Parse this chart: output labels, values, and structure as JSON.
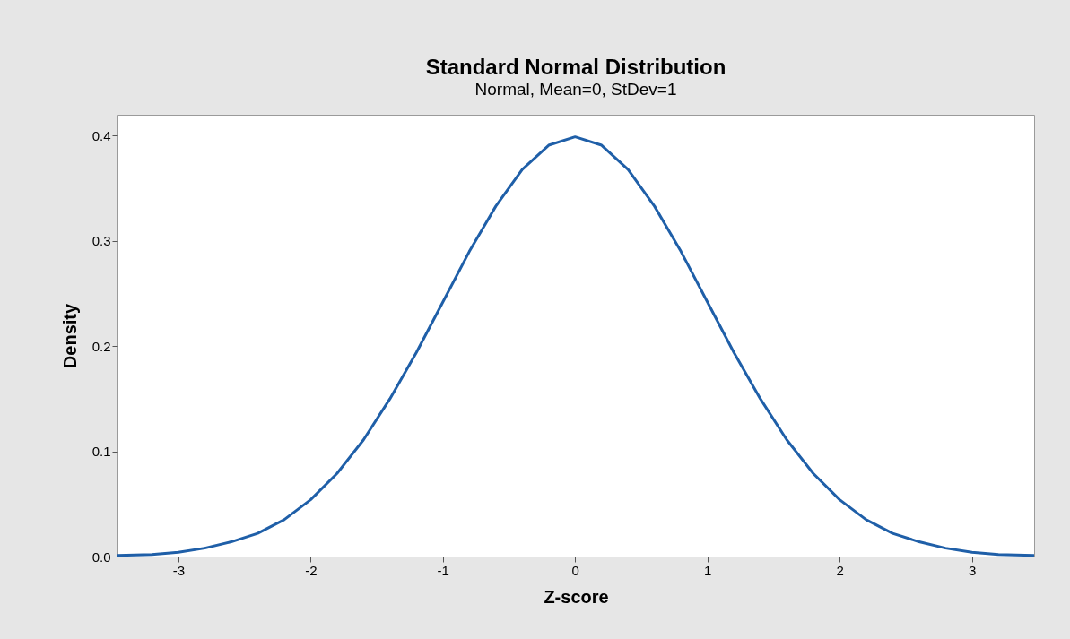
{
  "chart_data": {
    "type": "line",
    "title": "Standard Normal Distribution",
    "subtitle": "Normal, Mean=0, StDev=1",
    "xlabel": "Z-score",
    "ylabel": "Density",
    "x": [
      -3.46,
      -3.2,
      -3.0,
      -2.8,
      -2.6,
      -2.4,
      -2.2,
      -2.0,
      -1.8,
      -1.6,
      -1.4,
      -1.2,
      -1.0,
      -0.8,
      -0.6,
      -0.4,
      -0.2,
      0,
      0.2,
      0.4,
      0.6,
      0.8,
      1.0,
      1.2,
      1.4,
      1.6,
      1.8,
      2.0,
      2.2,
      2.4,
      2.6,
      2.8,
      3.0,
      3.2,
      3.47
    ],
    "series": [
      {
        "color": "#1f5fa8",
        "values": [
          0.001,
          0.002,
          0.004,
          0.008,
          0.014,
          0.022,
          0.035,
          0.054,
          0.079,
          0.111,
          0.15,
          0.194,
          0.242,
          0.29,
          0.333,
          0.368,
          0.391,
          0.399,
          0.391,
          0.368,
          0.333,
          0.29,
          0.242,
          0.194,
          0.15,
          0.111,
          0.079,
          0.054,
          0.035,
          0.022,
          0.014,
          0.008,
          0.004,
          0.002,
          0.001
        ]
      }
    ],
    "xlim": [
      -3.46,
      3.47
    ],
    "ylim": [
      0,
      0.42
    ],
    "xticks": [
      -3,
      -2,
      -1,
      0,
      1,
      2,
      3
    ],
    "yticks": [
      {
        "value": 0,
        "label": "0.0"
      },
      0.1,
      0.2,
      0.3,
      0.4
    ]
  }
}
